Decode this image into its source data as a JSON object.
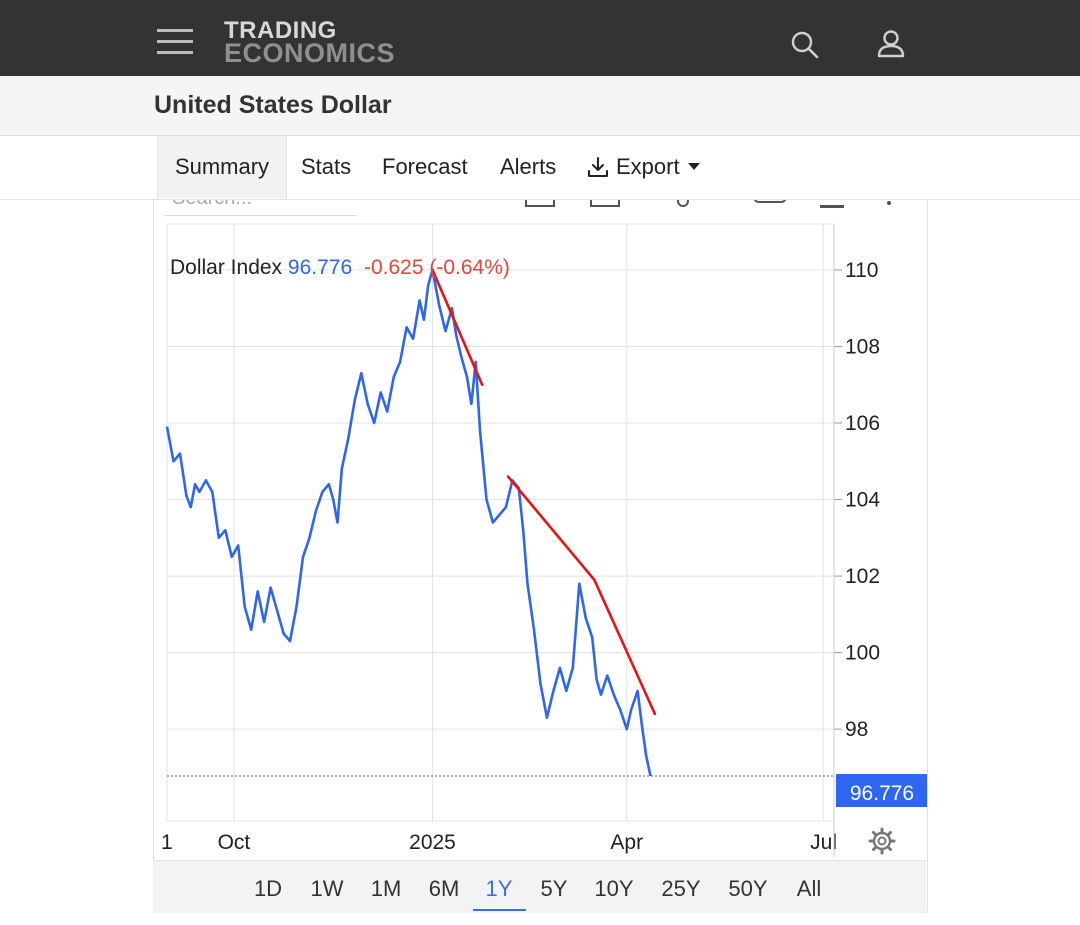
{
  "header": {
    "logo_line1": "TRADING",
    "logo_line2": "ECONOMICS",
    "icons": [
      "menu-icon",
      "search-icon",
      "user-icon"
    ]
  },
  "page": {
    "title": "United States Dollar"
  },
  "tabs": [
    {
      "label": "Summary",
      "active": true
    },
    {
      "label": "Stats"
    },
    {
      "label": "Forecast"
    },
    {
      "label": "Alerts"
    },
    {
      "label": "Export",
      "icon": "download-icon",
      "dropdown": true
    }
  ],
  "search": {
    "placeholder": "Search..."
  },
  "chart_data": {
    "type": "line",
    "legend": {
      "name": "Dollar Index",
      "last": "96.776",
      "change": "-0.625",
      "change_pct": "(-0.64%)"
    },
    "x_tick_labels": [
      "1",
      "Oct",
      "2025",
      "Apr",
      "Jul"
    ],
    "x_ticks": [
      0,
      31,
      123,
      213,
      304
    ],
    "y_ticks": [
      98,
      100,
      102,
      104,
      106,
      108,
      110
    ],
    "ylim": [
      95.6,
      111.2
    ],
    "xlim": [
      0,
      309
    ],
    "last_value": 96.776,
    "last_label": "96.776",
    "grid": true,
    "x_units": "days since 1 Sep 2024",
    "series": [
      {
        "name": "Dollar Index",
        "values": [
          [
            0,
            105.9
          ],
          [
            3,
            105.0
          ],
          [
            6,
            105.2
          ],
          [
            9,
            104.1
          ],
          [
            11,
            103.8
          ],
          [
            13,
            104.4
          ],
          [
            15,
            104.2
          ],
          [
            18,
            104.5
          ],
          [
            21,
            104.2
          ],
          [
            24,
            103.0
          ],
          [
            27,
            103.2
          ],
          [
            30,
            102.5
          ],
          [
            33,
            102.8
          ],
          [
            36,
            101.2
          ],
          [
            39,
            100.6
          ],
          [
            42,
            101.6
          ],
          [
            45,
            100.8
          ],
          [
            48,
            101.7
          ],
          [
            51,
            101.1
          ],
          [
            54,
            100.5
          ],
          [
            57,
            100.3
          ],
          [
            60,
            101.2
          ],
          [
            63,
            102.5
          ],
          [
            66,
            103.0
          ],
          [
            69,
            103.7
          ],
          [
            72,
            104.2
          ],
          [
            75,
            104.4
          ],
          [
            77,
            104.0
          ],
          [
            79,
            103.4
          ],
          [
            81,
            104.8
          ],
          [
            84,
            105.6
          ],
          [
            87,
            106.6
          ],
          [
            90,
            107.3
          ],
          [
            93,
            106.5
          ],
          [
            96,
            106.0
          ],
          [
            99,
            106.8
          ],
          [
            102,
            106.3
          ],
          [
            105,
            107.2
          ],
          [
            108,
            107.6
          ],
          [
            111,
            108.5
          ],
          [
            114,
            108.2
          ],
          [
            117,
            109.2
          ],
          [
            119,
            108.7
          ],
          [
            121,
            109.6
          ],
          [
            123,
            110.0
          ],
          [
            126,
            109.1
          ],
          [
            129,
            108.4
          ],
          [
            132,
            109.0
          ],
          [
            134,
            108.3
          ],
          [
            136,
            107.8
          ],
          [
            139,
            107.2
          ],
          [
            141,
            106.5
          ],
          [
            143,
            107.6
          ],
          [
            145,
            105.8
          ],
          [
            148,
            104.0
          ],
          [
            151,
            103.4
          ],
          [
            154,
            103.6
          ],
          [
            157,
            103.8
          ],
          [
            160,
            104.5
          ],
          [
            163,
            104.3
          ],
          [
            165,
            103.2
          ],
          [
            167,
            101.8
          ],
          [
            170,
            100.6
          ],
          [
            173,
            99.2
          ],
          [
            176,
            98.3
          ],
          [
            179,
            99.0
          ],
          [
            182,
            99.6
          ],
          [
            185,
            99.0
          ],
          [
            188,
            99.6
          ],
          [
            191,
            101.8
          ],
          [
            194,
            100.9
          ],
          [
            197,
            100.4
          ],
          [
            199,
            99.3
          ],
          [
            201,
            98.9
          ],
          [
            204,
            99.4
          ],
          [
            207,
            98.9
          ],
          [
            210,
            98.5
          ],
          [
            213,
            98.0
          ],
          [
            215,
            98.5
          ],
          [
            218,
            99.0
          ],
          [
            220,
            98.1
          ],
          [
            222,
            97.3
          ],
          [
            224,
            96.776
          ]
        ]
      }
    ],
    "trendlines": [
      {
        "from": [
          123,
          110.0
        ],
        "to": [
          146,
          107.0
        ]
      },
      {
        "from": [
          158,
          104.6
        ],
        "to": [
          198,
          101.9
        ]
      },
      {
        "from": [
          198,
          101.9
        ],
        "to": [
          226,
          98.4
        ]
      }
    ]
  },
  "range_buttons": [
    {
      "label": "1D"
    },
    {
      "label": "1W"
    },
    {
      "label": "1M"
    },
    {
      "label": "6M"
    },
    {
      "label": "1Y",
      "active": true
    },
    {
      "label": "5Y"
    },
    {
      "label": "10Y"
    },
    {
      "label": "25Y"
    },
    {
      "label": "50Y"
    },
    {
      "label": "All"
    }
  ],
  "colors": {
    "line": "#2f66f1",
    "trend": "#ee1111",
    "negative": "#e8443a",
    "accent": "#3a6ee8",
    "header_bg": "#333333"
  }
}
